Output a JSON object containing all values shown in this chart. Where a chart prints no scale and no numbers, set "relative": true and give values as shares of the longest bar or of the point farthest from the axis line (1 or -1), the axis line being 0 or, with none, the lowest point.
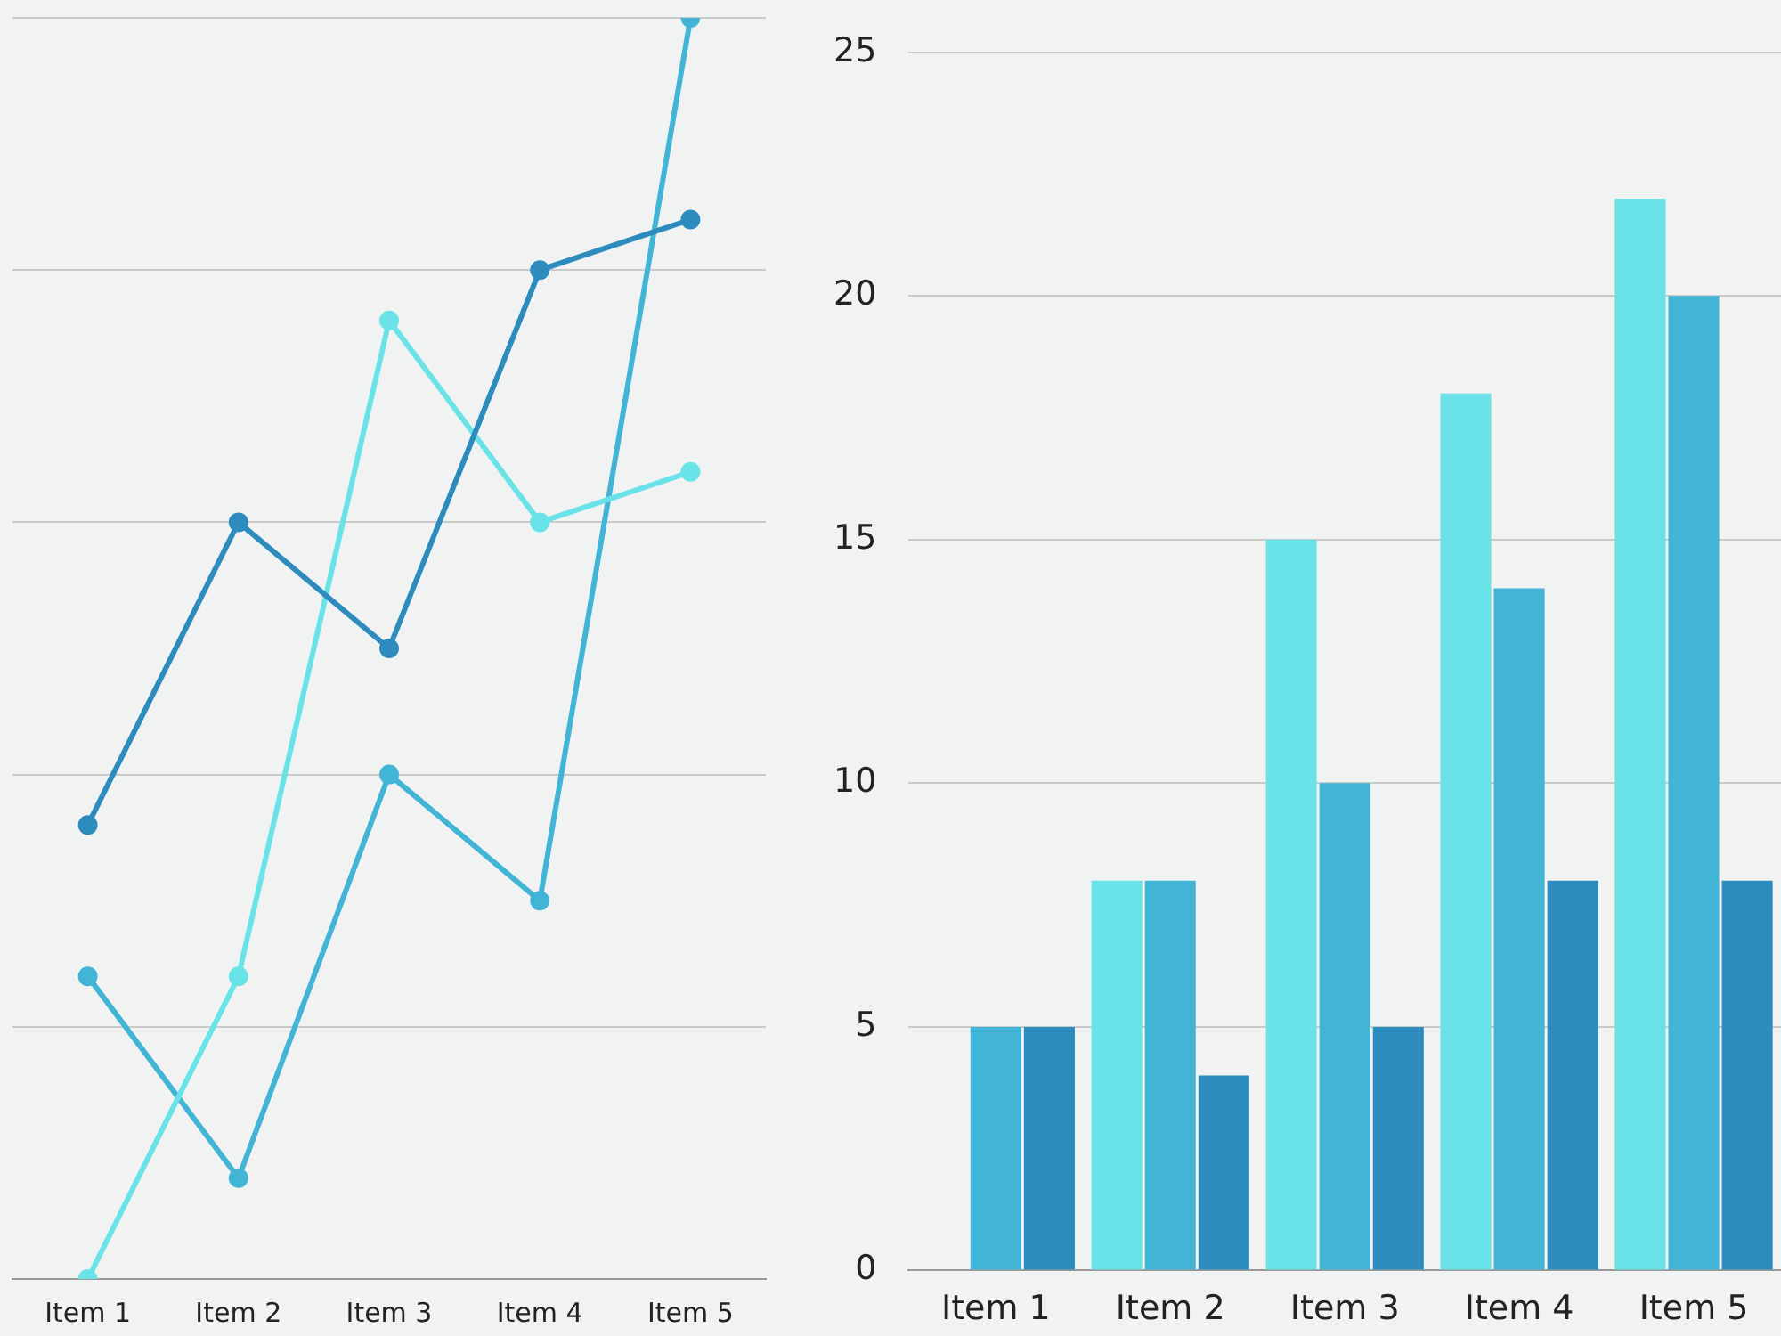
{
  "chart_data": [
    {
      "type": "line",
      "relative": true,
      "categories": [
        "Item 1",
        "Item 2",
        "Item 3",
        "Item 4",
        "Item 5"
      ],
      "grid": true,
      "legend": false,
      "marker": "circle",
      "line_style": "solid",
      "series": [
        {
          "color": "#2e8bbd",
          "values": [
            0.36,
            0.6,
            0.5,
            0.8,
            0.84
          ]
        },
        {
          "color": "#6ae3e8",
          "values": [
            0,
            0.24,
            0.76,
            0.6,
            0.64
          ]
        },
        {
          "color": "#42b4d6",
          "values": [
            0.24,
            0.08,
            0.4,
            0.3,
            1
          ]
        }
      ]
    },
    {
      "type": "bar",
      "categories": [
        "Item 1",
        "Item 2",
        "Item 3",
        "Item 4",
        "Item 5"
      ],
      "ylim": [
        0,
        25
      ],
      "yticks": [
        0,
        5,
        10,
        15,
        20,
        25
      ],
      "grid": true,
      "legend": false,
      "series": [
        {
          "color": "#6ae3e8",
          "values": [
            0,
            8,
            15,
            18,
            22
          ]
        },
        {
          "color": "#42b4d6",
          "values": [
            5,
            8,
            10,
            14,
            20
          ]
        },
        {
          "color": "#2e8bbd",
          "values": [
            5,
            4,
            5,
            8,
            8
          ]
        }
      ]
    }
  ]
}
